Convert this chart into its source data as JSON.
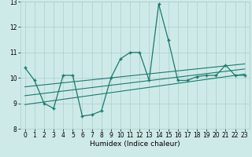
{
  "x": [
    0,
    1,
    2,
    3,
    4,
    5,
    6,
    7,
    8,
    9,
    10,
    11,
    12,
    13,
    14,
    15,
    16,
    17,
    18,
    19,
    20,
    21,
    22,
    23
  ],
  "y_main": [
    10.4,
    9.9,
    9.0,
    8.8,
    10.1,
    10.1,
    8.5,
    8.55,
    8.7,
    10.0,
    10.75,
    11.0,
    11.0,
    9.9,
    12.9,
    11.5,
    9.9,
    9.9,
    10.05,
    10.1,
    10.1,
    10.5,
    10.1,
    10.1
  ],
  "trend1_x": [
    0,
    23
  ],
  "trend1_y": [
    8.95,
    10.15
  ],
  "trend2_x": [
    0,
    23
  ],
  "trend2_y": [
    9.3,
    10.35
  ],
  "trend3_x": [
    0,
    23
  ],
  "trend3_y": [
    9.65,
    10.55
  ],
  "line_color": "#1a7a6e",
  "bg_color": "#ceeae8",
  "grid_color": "#aacfcb",
  "xlabel": "Humidex (Indice chaleur)",
  "ylim": [
    8,
    13
  ],
  "xlim": [
    -0.5,
    23.5
  ],
  "yticks": [
    8,
    9,
    10,
    11,
    12,
    13
  ],
  "xticks": [
    0,
    1,
    2,
    3,
    4,
    5,
    6,
    7,
    8,
    9,
    10,
    11,
    12,
    13,
    14,
    15,
    16,
    17,
    18,
    19,
    20,
    21,
    22,
    23
  ],
  "tick_fontsize": 5.5,
  "xlabel_fontsize": 6.5
}
